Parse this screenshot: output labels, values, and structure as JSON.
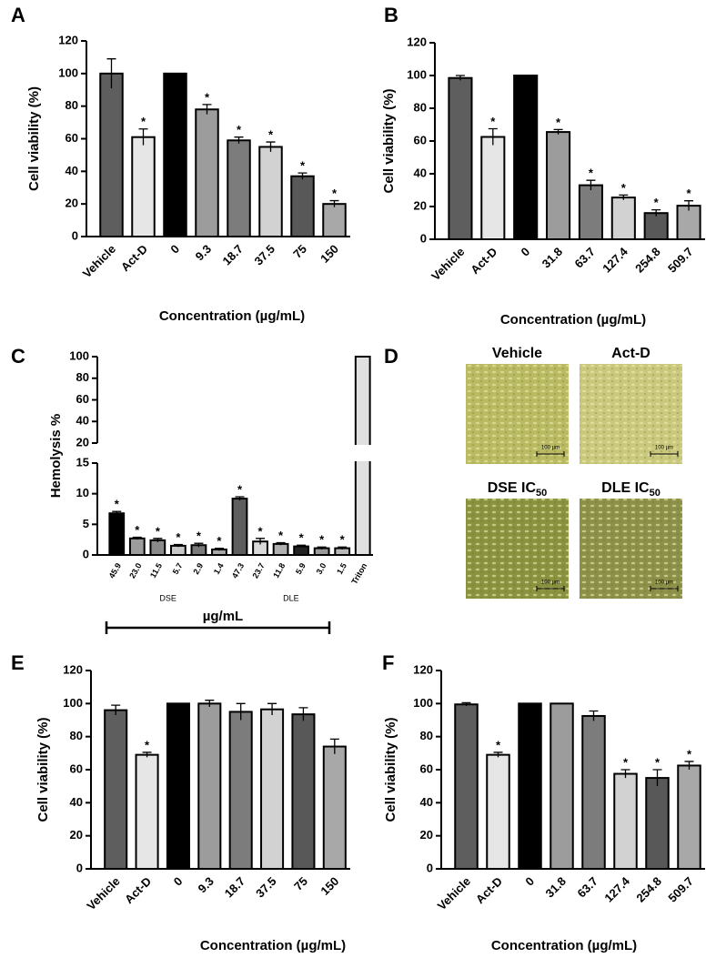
{
  "chart_data": [
    {
      "type": "bar",
      "panel": "A",
      "ylabel": "Cell viability (%)",
      "xlabel": "Concentration (µg/mL)",
      "categories": [
        "Vehicle",
        "Act-D",
        "0",
        "9.3",
        "18.7",
        "37.5",
        "75",
        "150"
      ],
      "values": [
        100,
        61,
        100,
        78,
        59,
        55,
        37,
        20
      ],
      "errors": [
        9,
        5,
        0,
        3,
        2,
        3,
        2,
        2
      ],
      "markers": [
        null,
        "*",
        null,
        "*",
        "*",
        "*",
        "*",
        "*"
      ],
      "colors": [
        "#5e5e5e",
        "#e6e6e6",
        "#000000",
        "#9c9c9c",
        "#7c7c7c",
        "#d2d2d2",
        "#585858",
        "#a8a8a8"
      ],
      "ylim": [
        0,
        120
      ],
      "yticks": [
        0,
        20,
        40,
        60,
        80,
        100,
        120
      ]
    },
    {
      "type": "bar",
      "panel": "B",
      "ylabel": "Cell viability (%)",
      "xlabel": "Concentration (µg/mL)",
      "categories": [
        "Vehicle",
        "Act-D",
        "0",
        "31.8",
        "63.7",
        "127.4",
        "254.8",
        "509.7"
      ],
      "values": [
        98.5,
        62.5,
        100,
        65.5,
        33,
        25.5,
        16,
        20.5
      ],
      "errors": [
        1.5,
        5,
        0,
        1.5,
        3,
        1.5,
        2,
        3
      ],
      "markers": [
        null,
        "*",
        null,
        "*",
        "*",
        "*",
        "*",
        "*"
      ],
      "colors": [
        "#5e5e5e",
        "#e6e6e6",
        "#000000",
        "#9c9c9c",
        "#7c7c7c",
        "#d2d2d2",
        "#585858",
        "#a8a8a8"
      ],
      "ylim": [
        0,
        120
      ],
      "yticks": [
        0,
        20,
        40,
        60,
        80,
        100,
        120
      ]
    },
    {
      "type": "bar",
      "panel": "C",
      "ylabel": "Hemolysis %",
      "xlabel": "µg/mL",
      "categories": [
        "45.9",
        "23.0",
        "11.5",
        "5.7",
        "2.9",
        "1.4",
        "47.3",
        "23.7",
        "11.8",
        "5.9",
        "3.0",
        "1.5",
        "Triton"
      ],
      "group_labels": [
        "DSE",
        "DLE"
      ],
      "values": [
        6.8,
        2.7,
        2.4,
        1.5,
        1.6,
        0.9,
        9.2,
        2.2,
        1.8,
        1.4,
        1.1,
        1.1,
        100
      ],
      "errors": [
        0.3,
        0.2,
        0.3,
        0.2,
        0.3,
        0.2,
        0.3,
        0.5,
        0.2,
        0.2,
        0.2,
        0.2,
        0
      ],
      "markers": [
        "*",
        "*",
        "*",
        "*",
        "*",
        "*",
        "*",
        "*",
        "*",
        "*",
        "*",
        "*",
        null
      ],
      "colors": [
        "#000000",
        "#9c9c9c",
        "#8a8a8a",
        "#c8c8c8",
        "#7a7a7a",
        "#a8a8a8",
        "#5e5e5e",
        "#dadada",
        "#b0b0b0",
        "#222222",
        "#9a9a9a",
        "#b8b8b8",
        "#e0e0e0"
      ],
      "ylim": [
        0,
        100
      ],
      "axis_break": [
        15,
        20
      ],
      "yticks": [
        0,
        5,
        10,
        15,
        20,
        40,
        60,
        80,
        100
      ]
    },
    {
      "type": "bar",
      "panel": "E",
      "ylabel": "Cell viability (%)",
      "xlabel": "Concentration (µg/mL)",
      "categories": [
        "Vehicle",
        "Act-D",
        "0",
        "9.3",
        "18.7",
        "37.5",
        "75",
        "150"
      ],
      "values": [
        96,
        69,
        100,
        100,
        95,
        96.5,
        93.5,
        74
      ],
      "errors": [
        3,
        1.5,
        0,
        2,
        5,
        3.5,
        4,
        4.5
      ],
      "markers": [
        null,
        "*",
        null,
        null,
        null,
        null,
        null,
        null
      ],
      "colors": [
        "#5e5e5e",
        "#e6e6e6",
        "#000000",
        "#9c9c9c",
        "#7c7c7c",
        "#d2d2d2",
        "#585858",
        "#a8a8a8"
      ],
      "ylim": [
        0,
        120
      ],
      "yticks": [
        0,
        20,
        40,
        60,
        80,
        100,
        120
      ]
    },
    {
      "type": "bar",
      "panel": "F",
      "ylabel": "Cell viability (%)",
      "xlabel": "Concentration (µg/mL)",
      "categories": [
        "Vehicle",
        "Act-D",
        "0",
        "31.8",
        "63.7",
        "127.4",
        "254.8",
        "509.7"
      ],
      "values": [
        99.5,
        69,
        100,
        100,
        92.5,
        57.5,
        55,
        62.5
      ],
      "errors": [
        1,
        1.5,
        0,
        0,
        3,
        2.5,
        5,
        2.5
      ],
      "markers": [
        null,
        "*",
        null,
        null,
        null,
        "*",
        "*",
        "*"
      ],
      "colors": [
        "#5e5e5e",
        "#e6e6e6",
        "#000000",
        "#9c9c9c",
        "#7c7c7c",
        "#d2d2d2",
        "#585858",
        "#a8a8a8"
      ],
      "ylim": [
        0,
        120
      ],
      "yticks": [
        0,
        20,
        40,
        60,
        80,
        100,
        120
      ]
    }
  ],
  "image_panel": {
    "panel": "D",
    "images": [
      {
        "title": "Vehicle",
        "scale": "100 µm"
      },
      {
        "title": "Act-D",
        "scale": "100 µm"
      },
      {
        "title": "DSE IC",
        "subscript": "50",
        "scale": "100 µm"
      },
      {
        "title": "DLE IC",
        "subscript": "50",
        "scale": "100 µm"
      }
    ]
  }
}
